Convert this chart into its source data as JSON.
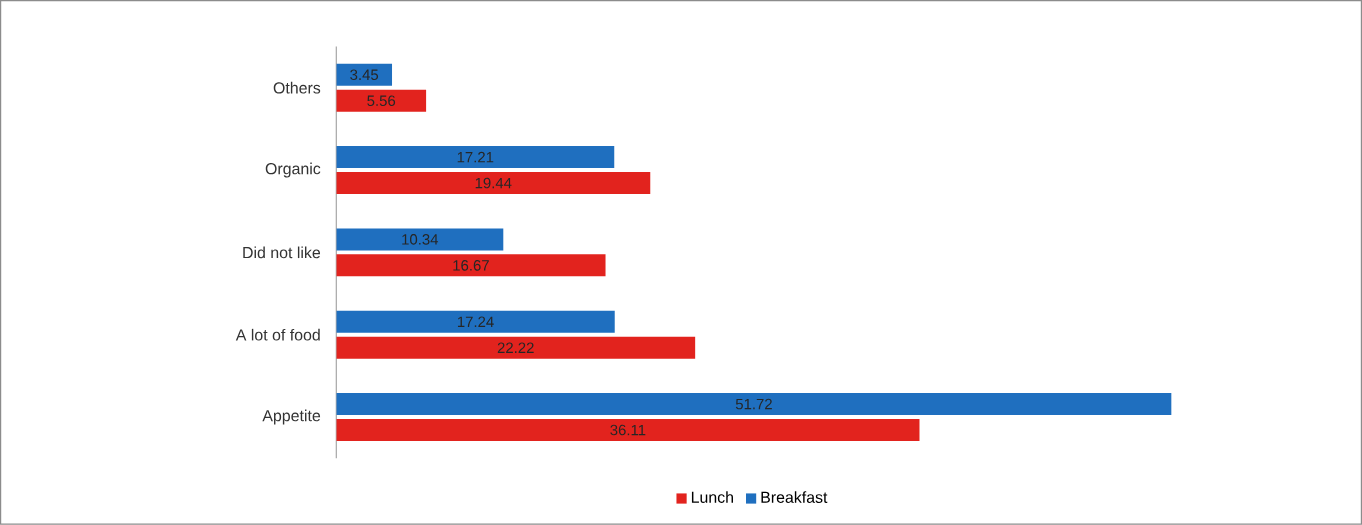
{
  "chart_data": {
    "type": "bar",
    "orientation": "horizontal",
    "categories": [
      "Others",
      "Organic",
      "Did not like",
      "A lot of food",
      "Appetite"
    ],
    "series": [
      {
        "name": "Lunch",
        "color": "#e2231e",
        "values": [
          5.56,
          19.44,
          16.67,
          22.22,
          36.11
        ]
      },
      {
        "name": "Breakfast",
        "color": "#1f6fbf",
        "values": [
          3.45,
          17.21,
          10.34,
          17.24,
          51.72
        ]
      }
    ],
    "data_labels": true,
    "legend": "bottom",
    "tick_labels": "y"
  }
}
